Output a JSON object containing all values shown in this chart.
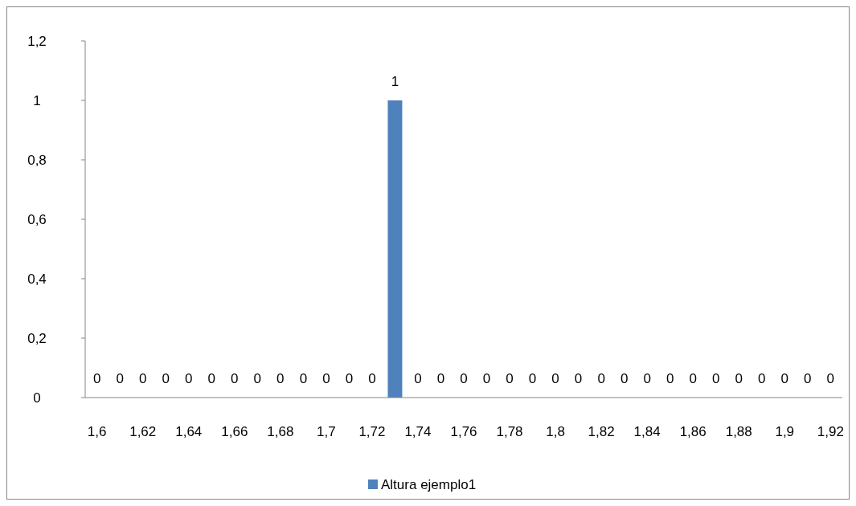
{
  "chart_data": {
    "type": "bar",
    "categories": [
      "1,6",
      null,
      "1,62",
      null,
      "1,64",
      null,
      "1,66",
      null,
      "1,68",
      null,
      "1,7",
      null,
      "1,72",
      null,
      "1,74",
      null,
      "1,76",
      null,
      "1,78",
      null,
      "1,8",
      null,
      "1,82",
      null,
      "1,84",
      null,
      "1,86",
      null,
      "1,88",
      null,
      "1,9",
      null,
      "1,92"
    ],
    "series": [
      {
        "name": "Altura ejemplo1",
        "color": "#4f81bd",
        "values": [
          0,
          0,
          0,
          0,
          0,
          0,
          0,
          0,
          0,
          0,
          0,
          0,
          0,
          1,
          0,
          0,
          0,
          0,
          0,
          0,
          0,
          0,
          0,
          0,
          0,
          0,
          0,
          0,
          0,
          0,
          0,
          0,
          0
        ]
      }
    ],
    "ylim": [
      0,
      1.2
    ],
    "yticks": [
      0,
      {
        "value": 0.2,
        "label": "0,2"
      },
      {
        "value": 0.4,
        "label": "0,4"
      },
      {
        "value": 0.6,
        "label": "0,6"
      },
      {
        "value": 0.8,
        "label": "0,8"
      },
      1,
      {
        "value": 1.2,
        "label": "1,2"
      }
    ],
    "data_labels": true,
    "grid": false,
    "legend": "bottom"
  }
}
